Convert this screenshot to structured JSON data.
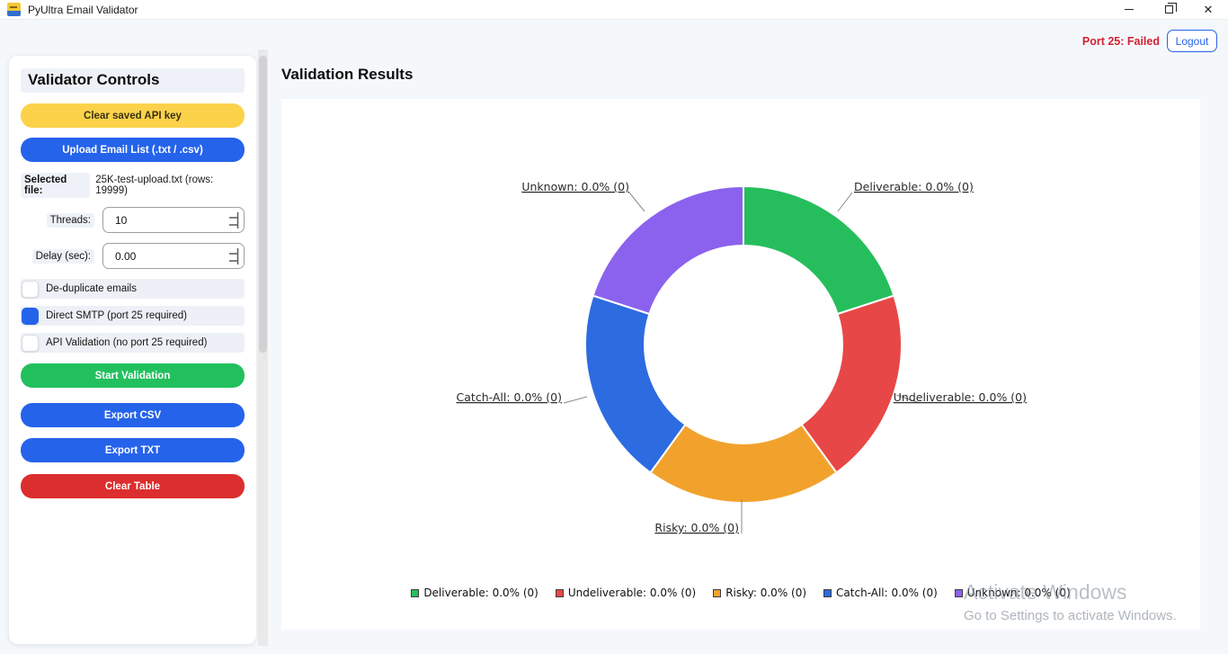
{
  "window": {
    "title": "PyUltra Email Validator"
  },
  "topbar": {
    "port_status": "Port 25: Failed",
    "logout_label": "Logout"
  },
  "sidebar": {
    "title": "Validator Controls",
    "clear_api_key_label": "Clear saved API key",
    "upload_label": "Upload Email List (.txt / .csv)",
    "selected_file_label": "Selected file:",
    "selected_file_value": "25K-test-upload.txt  (rows: 19999)",
    "threads_label": "Threads:",
    "threads_value": "10",
    "delay_label": "Delay (sec):",
    "delay_value": "0.00",
    "checkboxes": [
      {
        "label": "De-duplicate emails",
        "checked": false
      },
      {
        "label": "Direct SMTP (port 25 required)",
        "checked": true
      },
      {
        "label": "API Validation (no port 25 required)",
        "checked": false
      }
    ],
    "start_label": "Start Validation",
    "export_csv_label": "Export CSV",
    "export_txt_label": "Export TXT",
    "clear_table_label": "Clear Table"
  },
  "main": {
    "title": "Validation Results"
  },
  "watermark": {
    "line1": "Activate Windows",
    "line2": "Go to Settings to activate Windows."
  },
  "chart_data": {
    "type": "pie",
    "title": "",
    "hole_ratio": 0.625,
    "start_angle_deg": 90,
    "clockwise": true,
    "legend_position": "bottom",
    "series": [
      {
        "name": "Deliverable",
        "pct": 0.0,
        "count": 0,
        "display_fraction": 0.2,
        "color": "#26be5c",
        "label": "Deliverable: 0.0% (0)"
      },
      {
        "name": "Undeliverable",
        "pct": 0.0,
        "count": 0,
        "display_fraction": 0.2,
        "color": "#e84747",
        "label": "Undeliverable: 0.0% (0)"
      },
      {
        "name": "Risky",
        "pct": 0.0,
        "count": 0,
        "display_fraction": 0.2,
        "color": "#f2a22c",
        "label": "Risky: 0.0% (0)"
      },
      {
        "name": "Catch-All",
        "pct": 0.0,
        "count": 0,
        "display_fraction": 0.2,
        "color": "#2d6be0",
        "label": "Catch-All: 0.0% (0)"
      },
      {
        "name": "Unknown",
        "pct": 0.0,
        "count": 0,
        "display_fraction": 0.2,
        "color": "#8b62ed",
        "label": "Unknown: 0.0% (0)"
      }
    ]
  }
}
